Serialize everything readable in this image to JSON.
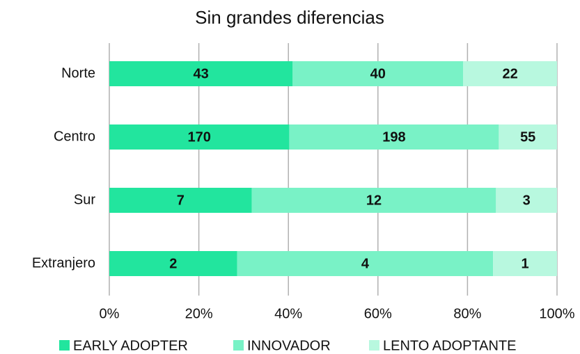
{
  "chart_data": {
    "type": "bar",
    "orientation": "horizontal",
    "stacked": "percent",
    "title": "Sin grandes diferencias",
    "categories": [
      "Norte",
      "Centro",
      "Sur",
      "Extranjero"
    ],
    "series": [
      {
        "name": "EARLY ADOPTER",
        "color": "#22e59e",
        "values": [
          43,
          170,
          7,
          2
        ]
      },
      {
        "name": "INNOVADOR",
        "color": "#79f2c6",
        "values": [
          40,
          198,
          12,
          4
        ]
      },
      {
        "name": "LENTO ADOPTANTE",
        "color": "#b8f8df",
        "values": [
          22,
          55,
          3,
          1
        ]
      }
    ],
    "xlim": [
      0,
      100
    ],
    "xticks": [
      {
        "value": 0,
        "label": "0%"
      },
      {
        "value": 20,
        "label": "20%"
      },
      {
        "value": 40,
        "label": "40%"
      },
      {
        "value": 60,
        "label": "60%"
      },
      {
        "value": 80,
        "label": "80%"
      },
      {
        "value": 100,
        "label": "100%"
      }
    ],
    "grid": true,
    "legend": "bottom"
  }
}
